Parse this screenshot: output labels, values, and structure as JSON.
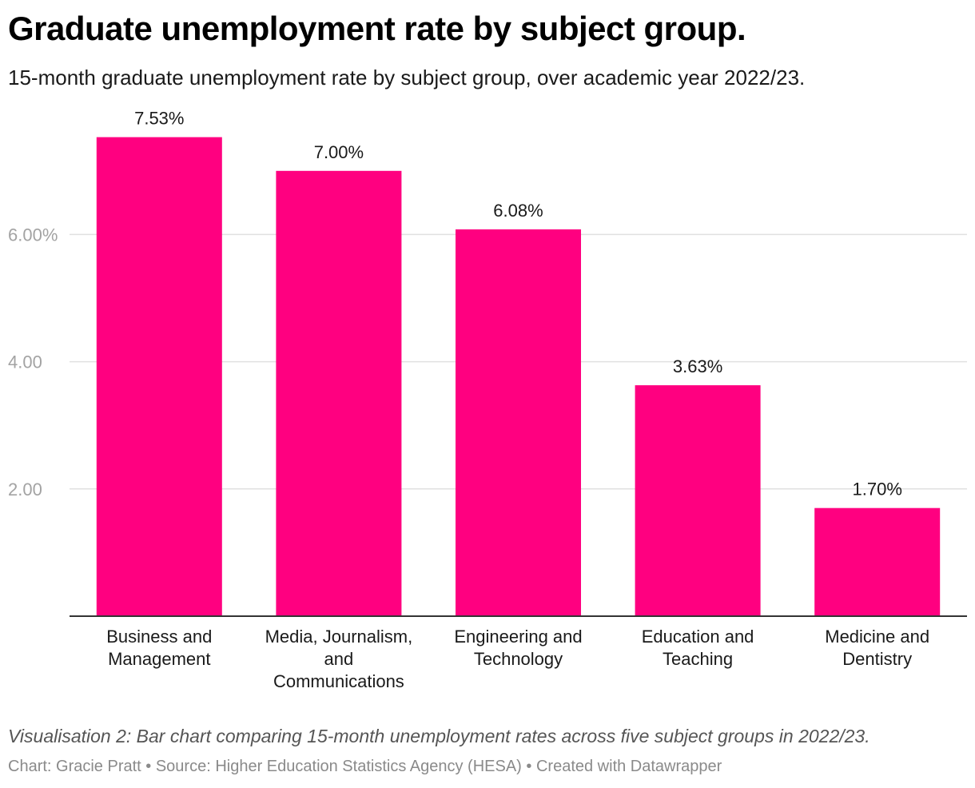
{
  "header": {
    "title": "Graduate unemployment rate by subject group.",
    "subtitle": "15-month graduate unemployment rate by subject group, over academic year 2022/23."
  },
  "chart_data": {
    "type": "bar",
    "title": "Graduate unemployment rate by subject group.",
    "subtitle": "15-month graduate unemployment rate by subject group, over academic year 2022/23.",
    "xlabel": "",
    "ylabel": "",
    "categories": [
      [
        "Business and",
        "Management"
      ],
      [
        "Media, Journalism,",
        "and",
        "Communications"
      ],
      [
        "Engineering and",
        "Technology"
      ],
      [
        "Education and",
        "Teaching"
      ],
      [
        "Medicine and",
        "Dentistry"
      ]
    ],
    "values": [
      7.53,
      7.0,
      6.08,
      3.63,
      1.7
    ],
    "value_labels": [
      "7.53%",
      "7.00%",
      "6.08%",
      "3.63%",
      "1.70%"
    ],
    "yticks": [
      {
        "value": 2,
        "label": "2.00"
      },
      {
        "value": 4,
        "label": "4.00"
      },
      {
        "value": 6,
        "label": "6.00%"
      }
    ],
    "ylim": [
      0,
      8.3
    ],
    "grid": true,
    "bar_color": "#ff0080",
    "grid_color": "#e0e0e0",
    "axis_color": "#333333",
    "tick_label_color": "#a3a3a3"
  },
  "footer": {
    "caption": "Visualisation 2: Bar chart comparing 15-month unemployment rates across five subject groups in 2022/23.",
    "credit_chart": "Chart: Gracie Pratt",
    "credit_source": "Source: Higher Education Statistics Agency (HESA)",
    "credit_tool": "Created with Datawrapper",
    "separator": " • "
  }
}
